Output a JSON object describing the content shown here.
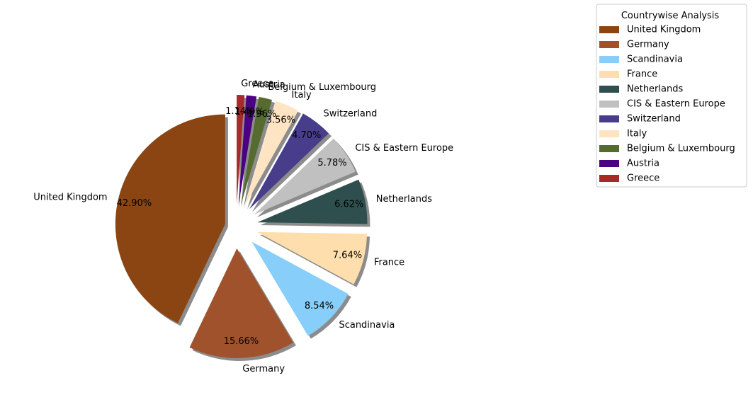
{
  "chart_data": {
    "type": "pie",
    "categories": [
      "United Kingdom",
      "Germany",
      "Scandinavia",
      "France",
      "Netherlands",
      "CIS & Eastern Europe",
      "Switzerland",
      "Italy",
      "Belgium & Luxembourg",
      "Austria",
      "Greece"
    ],
    "values": [
      42.9,
      15.66,
      8.54,
      7.64,
      6.62,
      5.78,
      4.7,
      3.56,
      1.96,
      1.49,
      1.14
    ],
    "percent_labels": [
      "42.90%",
      "15.66%",
      "8.54%",
      "7.64%",
      "6.62%",
      "5.78%",
      "4.70%",
      "3.56%",
      "1.96%",
      "1.49%",
      "1.14%"
    ],
    "colors": [
      "#8B4513",
      "#A0522D",
      "#87CEFA",
      "#FFDEAD",
      "#2F4F4F",
      "#C0C0C0",
      "#483D8B",
      "#FFE4C4",
      "#556B2F",
      "#4B0082",
      "#A52A2A"
    ],
    "explode": [
      0.1,
      0.2,
      0.2,
      0.2,
      0.2,
      0.2,
      0.2,
      0.2,
      0.2,
      0.2,
      0.2
    ],
    "start_angle_deg": 90,
    "direction": "counterclockwise",
    "shadow": true,
    "legend": {
      "title": "Countrywise Analysis",
      "placement": "top-right, outside plot"
    }
  }
}
